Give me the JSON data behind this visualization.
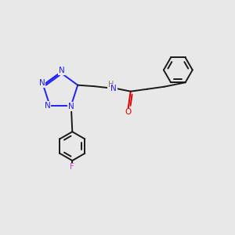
{
  "bg_color": "#e8e8e8",
  "bond_color": "#1a1a1a",
  "n_color": "#2020ff",
  "o_color": "#dd0000",
  "f_color": "#cc44cc",
  "h_color": "#777777",
  "lw": 1.4,
  "xlim": [
    0,
    10
  ],
  "ylim": [
    0,
    10
  ]
}
